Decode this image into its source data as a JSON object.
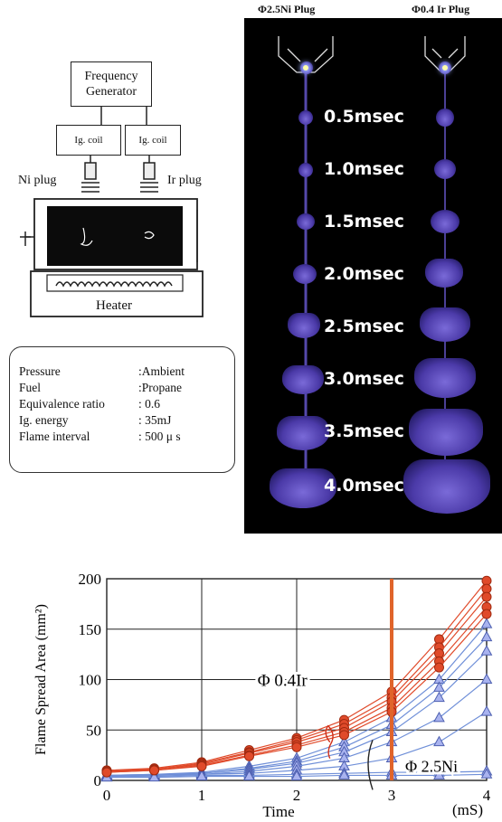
{
  "apparatus": {
    "frequency_generator": "Frequency\nGenerator",
    "coil_left": "Ig. coil",
    "coil_right": "Ig. coil",
    "ni_plug_label": "Ni plug",
    "ir_plug_label": "Ir plug",
    "heater_label": "Heater"
  },
  "conditions": [
    {
      "key": "Pressure",
      "value": ":Ambient"
    },
    {
      "key": "Fuel",
      "value": ":Propane"
    },
    {
      "key": "Equivalence ratio",
      "value": ": 0.6"
    },
    {
      "key": "Ig. energy",
      "value": ": 35mJ"
    },
    {
      "key": "Flame interval",
      "value": ": 500 μ s"
    }
  ],
  "photo": {
    "ni_header": "Φ2.5Ni Plug",
    "ir_header": "Φ0.4 Ir Plug",
    "times": [
      "0.5msec",
      "1.0msec",
      "1.5msec",
      "2.0msec",
      "2.5msec",
      "3.0msec",
      "3.5msec",
      "4.0msec"
    ]
  },
  "chart_data": {
    "type": "line",
    "ylabel": "Flame Spread Area (mm²)",
    "xlabel": "Time",
    "x_unit": "(mS)",
    "xlim": [
      0,
      4
    ],
    "ylim": [
      0,
      200
    ],
    "x_ticks": [
      0,
      1,
      2,
      3,
      4
    ],
    "y_ticks": [
      0,
      50,
      100,
      150,
      200
    ],
    "grid": true,
    "vertical_marker_x": 3,
    "annotations": [
      "Φ 0.4Ir",
      "Φ 2.5Ni"
    ],
    "series_groups": [
      {
        "name": "Φ 0.4Ir",
        "color": "#e04a2a",
        "marker": "circle",
        "x": [
          0,
          0.5,
          1,
          1.5,
          2,
          2.5,
          3,
          3.5,
          4
        ],
        "runs": [
          [
            10,
            12,
            18,
            30,
            42,
            60,
            88,
            140,
            198
          ],
          [
            9,
            11,
            17,
            28,
            40,
            56,
            82,
            132,
            190
          ],
          [
            9,
            11,
            16,
            27,
            38,
            52,
            78,
            126,
            182
          ],
          [
            8,
            10,
            15,
            25,
            35,
            48,
            72,
            118,
            172
          ],
          [
            8,
            10,
            14,
            24,
            33,
            45,
            68,
            112,
            165
          ]
        ]
      },
      {
        "name": "Φ 2.5Ni",
        "color": "#6f8fd8",
        "marker": "triangle",
        "x": [
          0,
          0.5,
          1,
          1.5,
          2,
          2.5,
          3,
          3.5,
          4
        ],
        "runs": [
          [
            5,
            6,
            8,
            14,
            22,
            38,
            62,
            100,
            155
          ],
          [
            5,
            6,
            7,
            12,
            19,
            33,
            55,
            92,
            142
          ],
          [
            5,
            5,
            7,
            11,
            17,
            28,
            48,
            82,
            128
          ],
          [
            4,
            5,
            6,
            9,
            14,
            22,
            38,
            62,
            100
          ],
          [
            4,
            5,
            6,
            7,
            10,
            14,
            22,
            38,
            68
          ],
          [
            3,
            4,
            5,
            5,
            6,
            7,
            8,
            8,
            9
          ],
          [
            3,
            3,
            4,
            4,
            4,
            5,
            5,
            5,
            6
          ]
        ]
      }
    ]
  }
}
